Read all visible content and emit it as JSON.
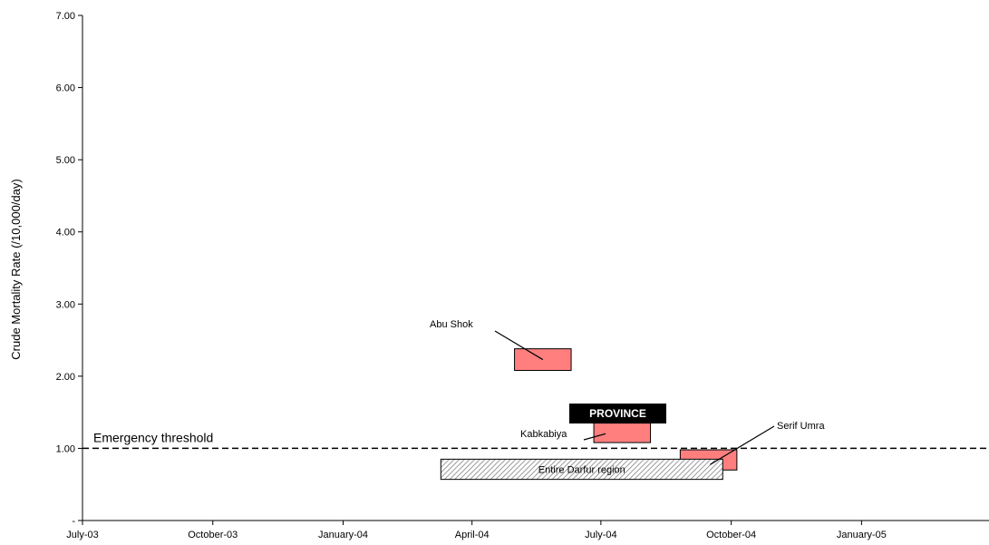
{
  "chart_data": {
    "type": "range-boxes",
    "ylabel": "Crude Mortality Rate (/10,000/day)",
    "ylim": [
      0,
      7
    ],
    "y_ticks": [
      {
        "value": 0,
        "label": "-"
      },
      {
        "value": 1,
        "label": "1.00"
      },
      {
        "value": 2,
        "label": "2.00"
      },
      {
        "value": 3,
        "label": "3.00"
      },
      {
        "value": 4,
        "label": "4.00"
      },
      {
        "value": 5,
        "label": "5.00"
      },
      {
        "value": 6,
        "label": "6.00"
      },
      {
        "value": 7,
        "label": "7.00"
      }
    ],
    "x_ticks": [
      "July-03",
      "October-03",
      "January-04",
      "April-04",
      "July-04",
      "October-04",
      "January-05"
    ],
    "xlim_months": [
      "July-03",
      "April-05"
    ],
    "threshold": {
      "value": 1.0,
      "label": "Emergency threshold"
    },
    "legend_box": {
      "label": "PROVINCE",
      "color": "#000000"
    },
    "surveys": [
      {
        "label": "Abu Shok",
        "start": "2004-05-01",
        "end": "2004-06-10",
        "y_low": 2.08,
        "y_high": 2.38,
        "color": "#ff7f7f"
      },
      {
        "label": "Kabkabiya",
        "start": "2004-06-26",
        "end": "2004-08-05",
        "y_low": 1.08,
        "y_high": 1.35,
        "color": "#ff7f7f"
      },
      {
        "label": "Serif Umra",
        "start": "2004-08-26",
        "end": "2004-10-05",
        "y_low": 0.7,
        "y_high": 0.98,
        "color": "#ff7f7f"
      },
      {
        "label": "Entire Darfur region",
        "start": "2004-03-10",
        "end": "2004-09-25",
        "y_low": 0.57,
        "y_high": 0.85,
        "color": "#cccccc",
        "pattern": "hatched"
      }
    ]
  }
}
